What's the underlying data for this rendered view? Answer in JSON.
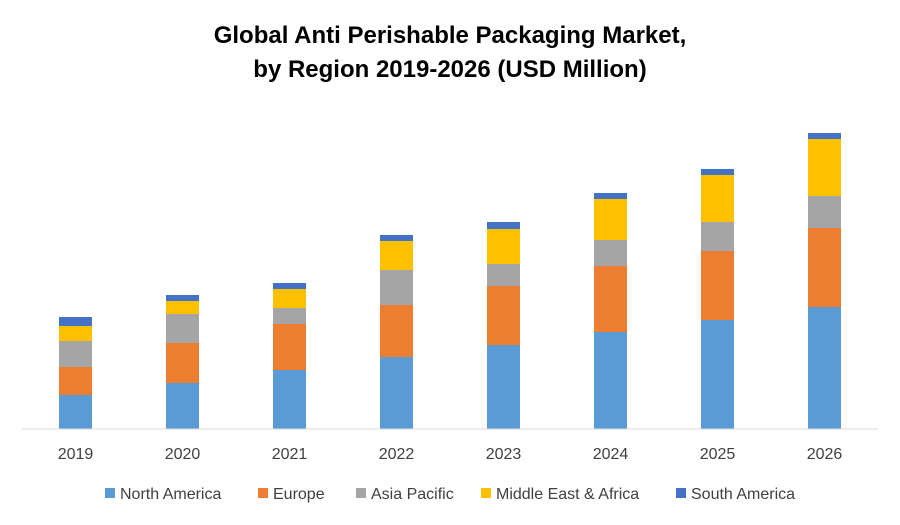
{
  "chart_data": {
    "type": "bar",
    "stacked": true,
    "title": "Global Anti Perishable Packaging Market, by Region 2019-2026 (USD Million)",
    "title_lines": [
      "Global Anti Perishable Packaging Market,",
      "by Region 2019-2026 (USD Million)"
    ],
    "categories": [
      "2019",
      "2020",
      "2021",
      "2022",
      "2023",
      "2024",
      "2025",
      "2026"
    ],
    "series": [
      {
        "name": "North America",
        "color": "#5B9BD5",
        "values": [
          34,
          46,
          59,
          72,
          84,
          97,
          109,
          122
        ]
      },
      {
        "name": "Europe",
        "color": "#ED7D31",
        "values": [
          28,
          40,
          46,
          52,
          59,
          66,
          69,
          79
        ]
      },
      {
        "name": "Asia Pacific",
        "color": "#A5A5A5",
        "values": [
          26,
          29,
          16,
          35,
          22,
          26,
          29,
          32
        ]
      },
      {
        "name": "Middle East & Africa",
        "color": "#FFC000",
        "values": [
          15,
          13,
          19,
          29,
          35,
          41,
          47,
          57
        ]
      },
      {
        "name": "South America",
        "color": "#4472C4",
        "values": [
          9,
          6,
          6,
          6,
          7,
          6,
          6,
          6
        ]
      }
    ],
    "ylim": [
      0,
      300
    ],
    "grid": false,
    "legend_position": "bottom"
  }
}
